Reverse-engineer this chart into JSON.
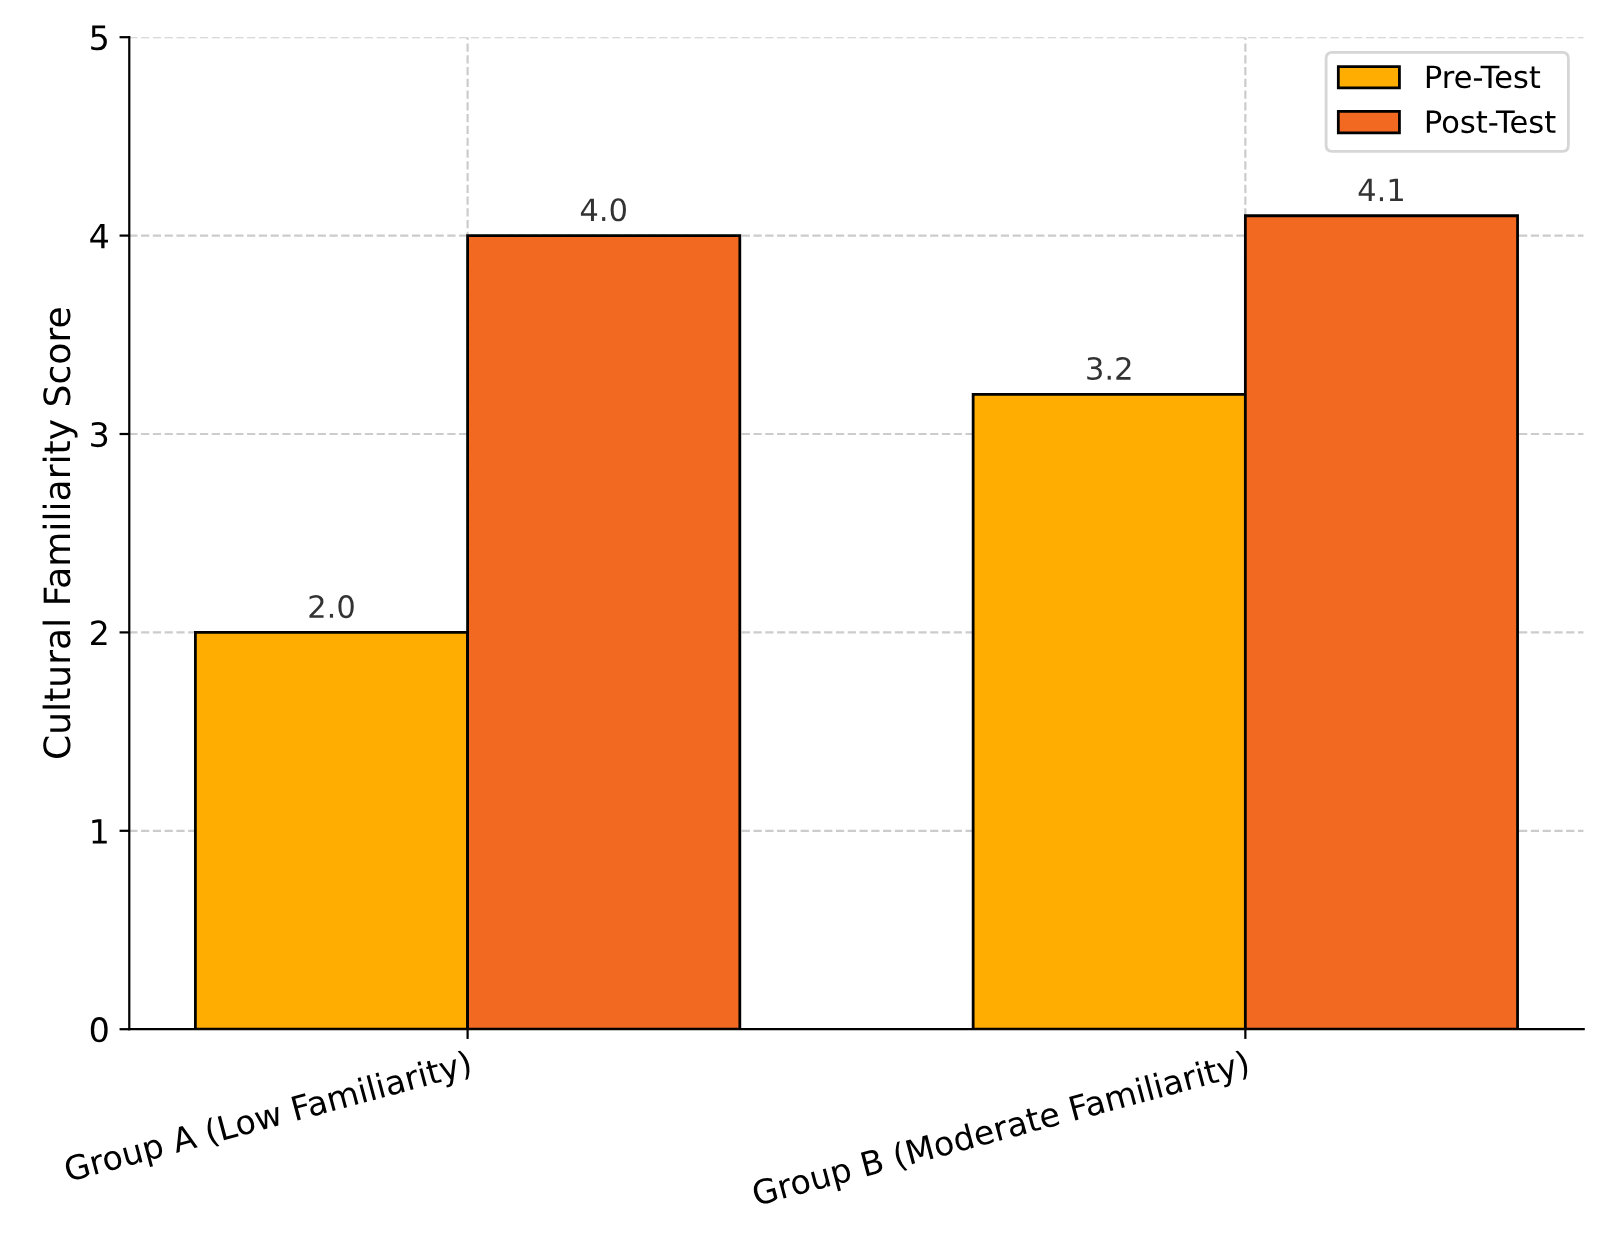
{
  "chart_data": {
    "type": "bar",
    "ylabel": "Cultural Familiarity Score",
    "categories": [
      "Group A (Low Familiarity)",
      "Group B (Moderate Familiarity)"
    ],
    "series": [
      {
        "name": "Pre-Test",
        "color": "#ffad00",
        "values": [
          2.0,
          3.2
        ],
        "value_labels": [
          "2.0",
          "3.2"
        ]
      },
      {
        "name": "Post-Test",
        "color": "#f26922",
        "values": [
          4.0,
          4.1
        ],
        "value_labels": [
          "4.0",
          "4.1"
        ]
      }
    ],
    "ylim": [
      0,
      5
    ],
    "yticks": [
      0,
      1,
      2,
      3,
      4,
      5
    ],
    "grid": true,
    "legend": "top right"
  }
}
